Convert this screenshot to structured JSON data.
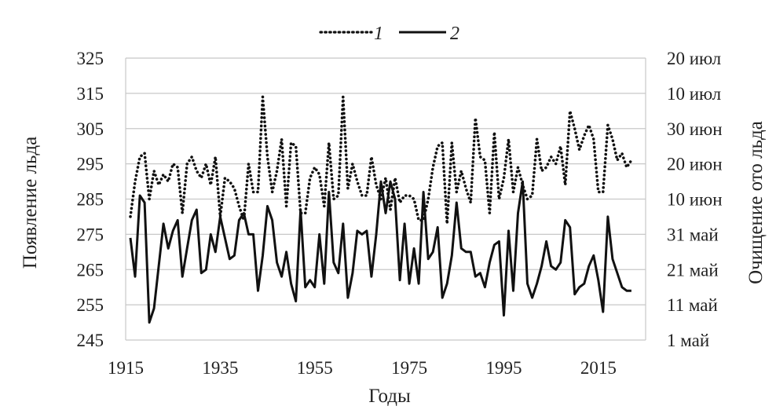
{
  "chart_data": {
    "type": "line",
    "xlabel": "Годы",
    "ylabel_left": "Появление льда",
    "ylabel_right": "Очищение ото льда",
    "xlim": [
      1915,
      2025
    ],
    "ylim": [
      245,
      325
    ],
    "x_ticks": [
      "1915",
      "1935",
      "1955",
      "1975",
      "1995",
      "2015"
    ],
    "y_ticks_left": [
      "325",
      "315",
      "305",
      "295",
      "285",
      "275",
      "265",
      "255",
      "245"
    ],
    "y_ticks_right": [
      "20 июл",
      "10 июл",
      "30 июн",
      "20 июн",
      "10 июн",
      "31 май",
      "21 май",
      "11 май",
      "1 май"
    ],
    "grid": true,
    "legend_position": "top-center",
    "series": [
      {
        "name": "1",
        "line_style": "dotted",
        "color": "#111111",
        "x": [
          1916,
          1917,
          1918,
          1919,
          1920,
          1921,
          1922,
          1923,
          1924,
          1925,
          1926,
          1927,
          1928,
          1929,
          1930,
          1931,
          1932,
          1933,
          1934,
          1935,
          1936,
          1937,
          1938,
          1939,
          1940,
          1941,
          1942,
          1943,
          1944,
          1945,
          1946,
          1947,
          1948,
          1949,
          1950,
          1951,
          1952,
          1953,
          1954,
          1955,
          1956,
          1957,
          1958,
          1959,
          1960,
          1961,
          1962,
          1963,
          1964,
          1965,
          1966,
          1967,
          1968,
          1969,
          1970,
          1971,
          1972,
          1973,
          1974,
          1975,
          1976,
          1977,
          1978,
          1979,
          1980,
          1981,
          1982,
          1983,
          1984,
          1985,
          1986,
          1987,
          1988,
          1989,
          1990,
          1991,
          1992,
          1993,
          1994,
          1995,
          1996,
          1997,
          1998,
          1999,
          2000,
          2001,
          2002,
          2003,
          2004,
          2005,
          2006,
          2007,
          2008,
          2009,
          2010,
          2011,
          2012,
          2013,
          2014,
          2015,
          2016,
          2017,
          2018,
          2019,
          2020,
          2021,
          2022
        ],
        "y": [
          280,
          290,
          297,
          298,
          285,
          293,
          289,
          292,
          290,
          295,
          294,
          281,
          295,
          297,
          293,
          291,
          295,
          289,
          297,
          280,
          291,
          290,
          288,
          283,
          279,
          295,
          287,
          287,
          314,
          297,
          287,
          293,
          302,
          283,
          301,
          300,
          281,
          281,
          291,
          294,
          292,
          283,
          301,
          285,
          286,
          314,
          288,
          295,
          290,
          286,
          286,
          297,
          289,
          285,
          291,
          282,
          291,
          284,
          286,
          286,
          285,
          279,
          279,
          285,
          294,
          300,
          301,
          278,
          301,
          287,
          293,
          288,
          284,
          308,
          297,
          296,
          281,
          304,
          285,
          291,
          302,
          287,
          294,
          289,
          285,
          286,
          302,
          293,
          294,
          297,
          295,
          300,
          289,
          310,
          305,
          299,
          303,
          306,
          302,
          287,
          287,
          306,
          302,
          296,
          298,
          294,
          296
        ]
      },
      {
        "name": "2",
        "line_style": "solid",
        "color": "#111111",
        "x": [
          1916,
          1917,
          1918,
          1919,
          1920,
          1921,
          1922,
          1923,
          1924,
          1925,
          1926,
          1927,
          1928,
          1929,
          1930,
          1931,
          1932,
          1933,
          1934,
          1935,
          1936,
          1937,
          1938,
          1939,
          1940,
          1941,
          1942,
          1943,
          1944,
          1945,
          1946,
          1947,
          1948,
          1949,
          1950,
          1951,
          1952,
          1953,
          1954,
          1955,
          1956,
          1957,
          1958,
          1959,
          1960,
          1961,
          1962,
          1963,
          1964,
          1965,
          1966,
          1967,
          1968,
          1969,
          1970,
          1971,
          1972,
          1973,
          1974,
          1975,
          1976,
          1977,
          1978,
          1979,
          1980,
          1981,
          1982,
          1983,
          1984,
          1985,
          1986,
          1987,
          1988,
          1989,
          1990,
          1991,
          1992,
          1993,
          1994,
          1995,
          1996,
          1997,
          1998,
          1999,
          2000,
          2001,
          2002,
          2003,
          2004,
          2005,
          2006,
          2007,
          2008,
          2009,
          2010,
          2011,
          2012,
          2013,
          2014,
          2015,
          2016,
          2017,
          2018,
          2019,
          2020,
          2021,
          2022
        ],
        "y": [
          274,
          263,
          286,
          284,
          250,
          254,
          266,
          278,
          271,
          276,
          279,
          263,
          271,
          279,
          282,
          264,
          265,
          275,
          270,
          280,
          274,
          268,
          269,
          279,
          281,
          275,
          275,
          259,
          269,
          283,
          279,
          267,
          263,
          270,
          261,
          256,
          282,
          260,
          262,
          260,
          275,
          261,
          287,
          267,
          264,
          278,
          257,
          264,
          276,
          275,
          276,
          263,
          275,
          290,
          281,
          290,
          285,
          262,
          278,
          261,
          271,
          261,
          287,
          268,
          270,
          277,
          257,
          261,
          269,
          284,
          271,
          270,
          270,
          263,
          264,
          260,
          267,
          272,
          273,
          252,
          276,
          259,
          281,
          290,
          261,
          257,
          261,
          266,
          273,
          266,
          265,
          267,
          279,
          277,
          258,
          260,
          261,
          266,
          269,
          262,
          253,
          280,
          268,
          264,
          260,
          259,
          259
        ]
      }
    ]
  }
}
